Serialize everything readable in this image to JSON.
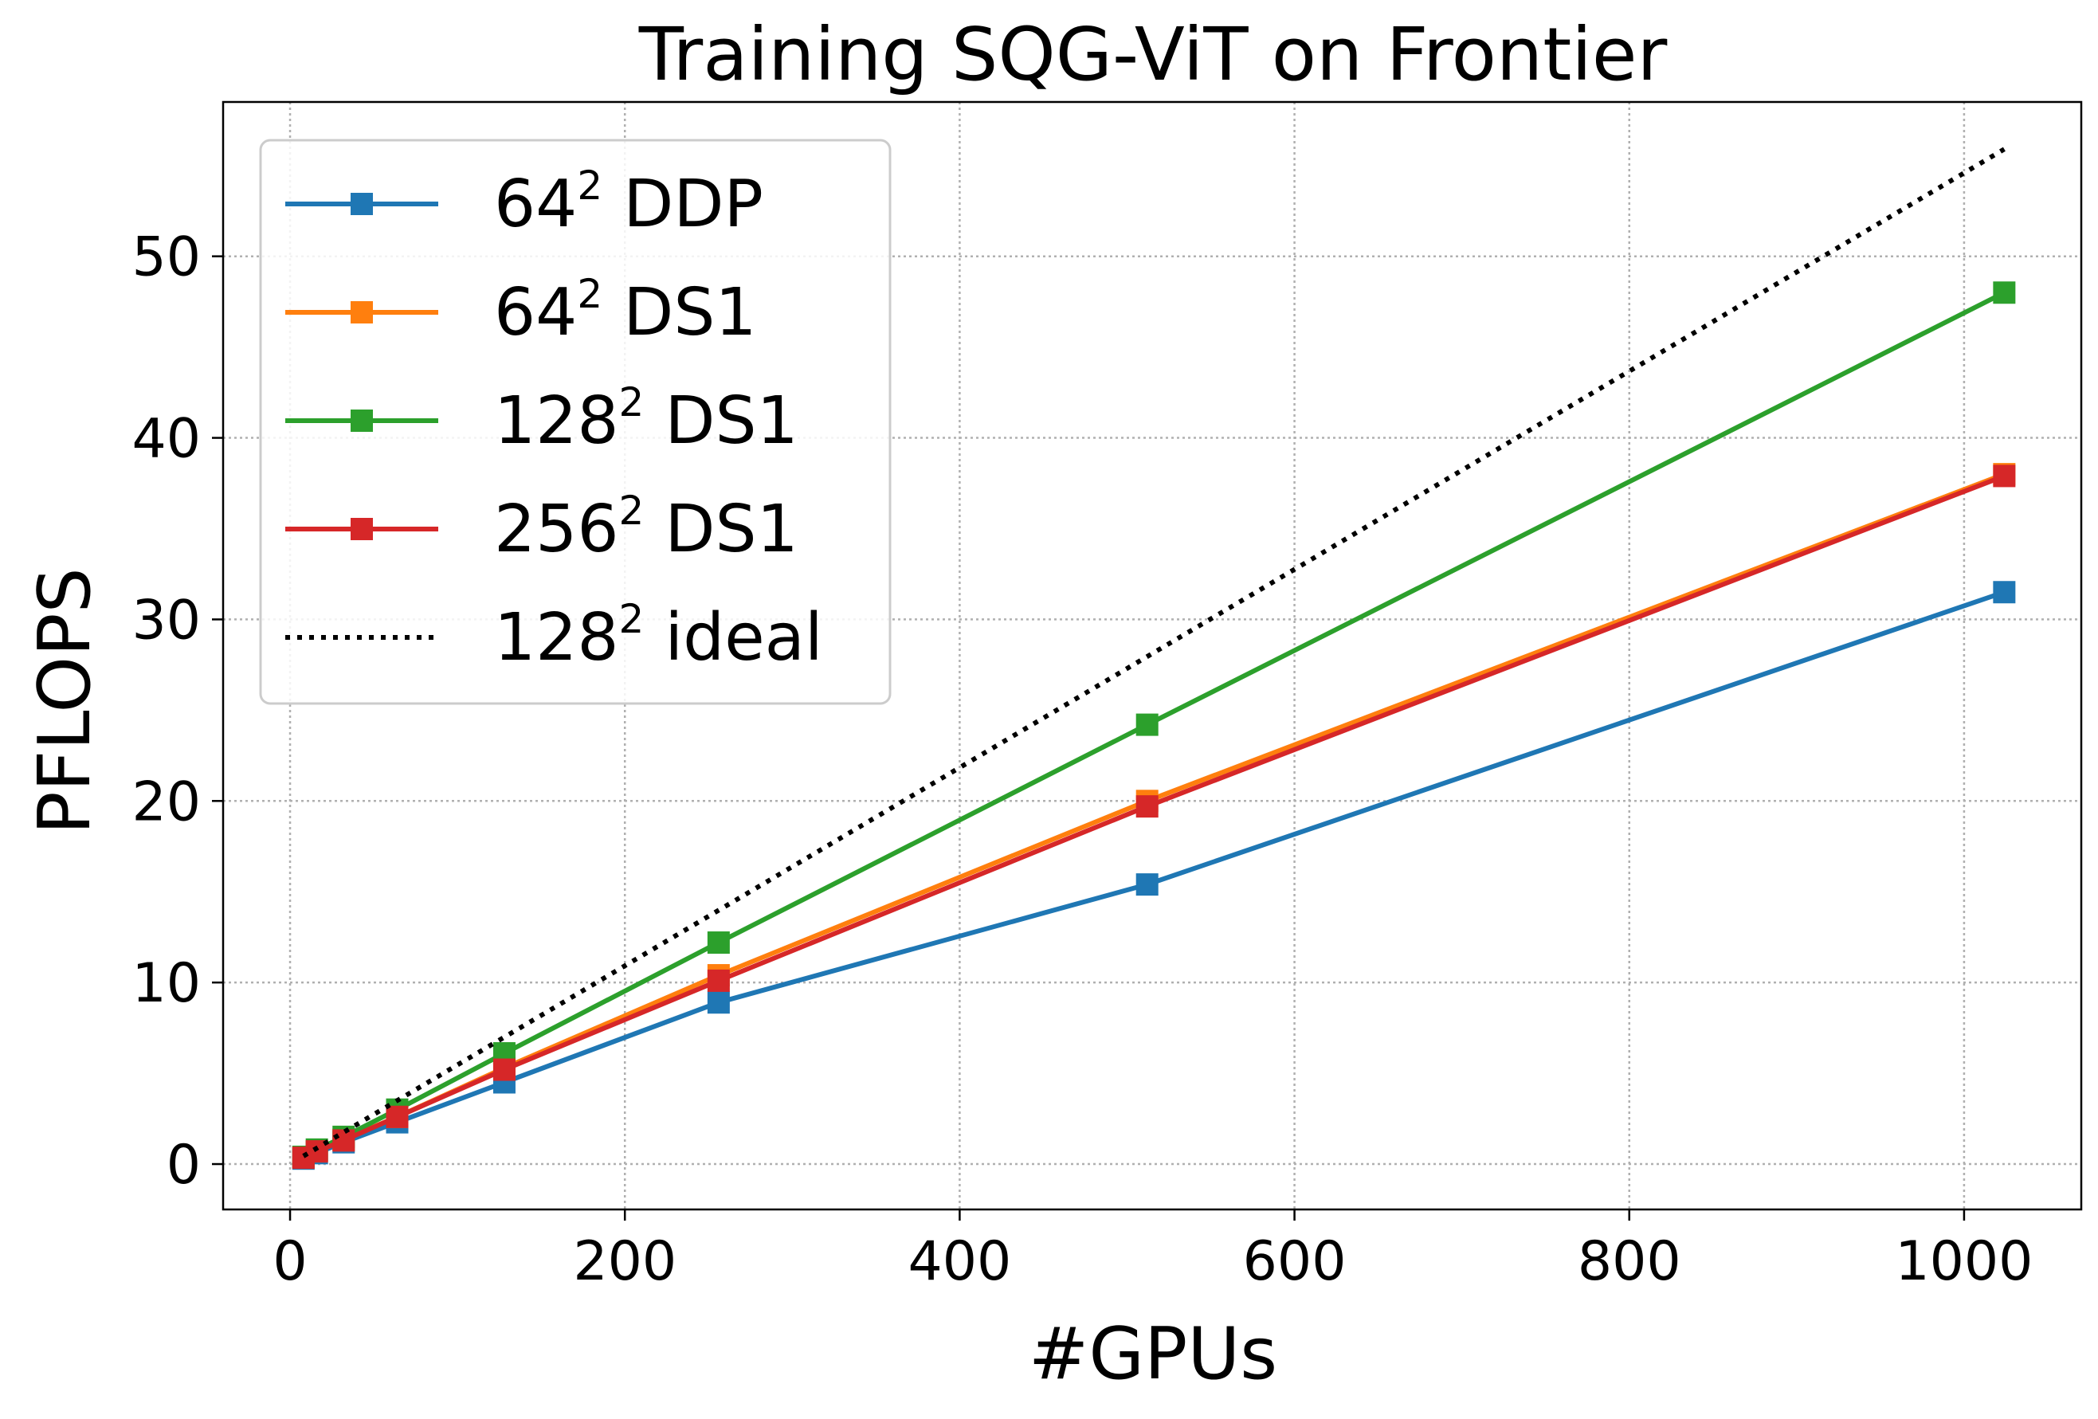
{
  "chart_data": {
    "type": "line",
    "title": "Training SQG-ViT on Frontier",
    "xlabel": "#GPUs",
    "ylabel": "PFLOPS",
    "xlim": [
      -40,
      1070
    ],
    "ylim": [
      -2.5,
      58.5
    ],
    "xticks": [
      0,
      200,
      400,
      600,
      800,
      1000
    ],
    "yticks": [
      0,
      10,
      20,
      30,
      40,
      50
    ],
    "grid": true,
    "legend_position": "top-left",
    "series": [
      {
        "base": "64",
        "exp": "2",
        "suffix": " DDP",
        "color": "#1f77b4",
        "marker": "square",
        "style": "solid",
        "x": [
          8,
          16,
          32,
          64,
          128,
          256,
          512,
          1024
        ],
        "y": [
          0.3,
          0.6,
          1.2,
          2.3,
          4.5,
          8.9,
          15.4,
          31.5
        ]
      },
      {
        "base": "64",
        "exp": "2",
        "suffix": " DS1",
        "color": "#ff7f0e",
        "marker": "square",
        "style": "solid",
        "x": [
          8,
          16,
          32,
          64,
          128,
          256,
          512,
          1024
        ],
        "y": [
          0.35,
          0.7,
          1.35,
          2.6,
          5.3,
          10.4,
          20.0,
          38.0
        ]
      },
      {
        "base": "128",
        "exp": "2",
        "suffix": " DS1",
        "color": "#2ca02c",
        "marker": "square",
        "style": "solid",
        "x": [
          8,
          16,
          32,
          64,
          128,
          256,
          512,
          1024
        ],
        "y": [
          0.4,
          0.8,
          1.5,
          3.0,
          6.1,
          12.2,
          24.2,
          48.0
        ]
      },
      {
        "base": "256",
        "exp": "2",
        "suffix": " DS1",
        "color": "#d62728",
        "marker": "square",
        "style": "solid",
        "x": [
          8,
          16,
          32,
          64,
          128,
          256,
          512,
          1024
        ],
        "y": [
          0.35,
          0.7,
          1.3,
          2.6,
          5.2,
          10.1,
          19.7,
          37.9
        ]
      },
      {
        "base": "128",
        "exp": "2",
        "suffix": " ideal",
        "color": "#000000",
        "marker": "none",
        "style": "dotted",
        "x": [
          8,
          1024
        ],
        "y": [
          0.44,
          55.9
        ]
      }
    ]
  }
}
